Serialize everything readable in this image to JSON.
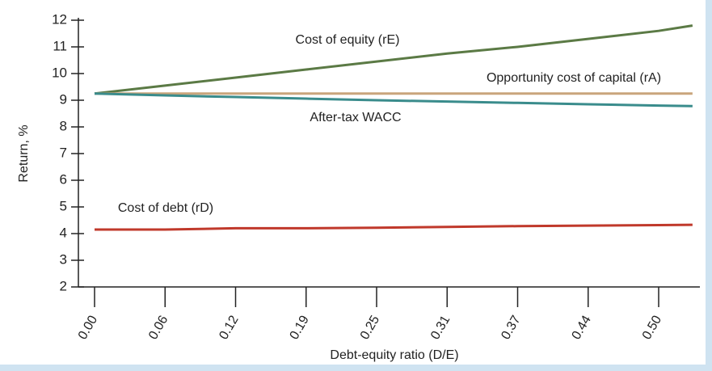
{
  "chart_data": {
    "type": "line",
    "x": [
      0,
      0.0625,
      0.125,
      0.1875,
      0.25,
      0.3125,
      0.375,
      0.4375,
      0.5,
      0.53
    ],
    "series": [
      {
        "name": "Cost of equity (rE)",
        "color": "#5b7a45",
        "values": [
          9.25,
          9.55,
          9.85,
          10.15,
          10.45,
          10.75,
          11.0,
          11.3,
          11.6,
          11.8
        ]
      },
      {
        "name": "Opportunity cost of capital (rA)",
        "color": "#c9a57c",
        "values": [
          9.25,
          9.25,
          9.25,
          9.25,
          9.25,
          9.25,
          9.25,
          9.25,
          9.25,
          9.25
        ]
      },
      {
        "name": "After-tax WACC",
        "color": "#3a8c8c",
        "values": [
          9.25,
          9.18,
          9.12,
          9.06,
          9.0,
          8.95,
          8.9,
          8.85,
          8.8,
          8.78
        ]
      },
      {
        "name": "Cost of debt (rD)",
        "color": "#c0392b",
        "values": [
          4.15,
          4.15,
          4.2,
          4.2,
          4.22,
          4.25,
          4.28,
          4.3,
          4.32,
          4.33
        ]
      }
    ],
    "xlabel": "Debt-equity ratio (D/E)",
    "ylabel": "Return, %",
    "xlim": [
      0,
      0.5
    ],
    "ylim": [
      2,
      12
    ],
    "xticks": [
      {
        "value": 0,
        "label": "0.00"
      },
      {
        "value": 0.0625,
        "label": "0.06"
      },
      {
        "value": 0.125,
        "label": "0.12"
      },
      {
        "value": 0.1875,
        "label": "0.19"
      },
      {
        "value": 0.25,
        "label": "0.25"
      },
      {
        "value": 0.3125,
        "label": "0.31"
      },
      {
        "value": 0.375,
        "label": "0.37"
      },
      {
        "value": 0.4375,
        "label": "0.44"
      },
      {
        "value": 0.5,
        "label": "0.50"
      }
    ],
    "yticks": [
      2,
      3,
      4,
      5,
      6,
      7,
      8,
      9,
      10,
      11,
      12
    ]
  }
}
